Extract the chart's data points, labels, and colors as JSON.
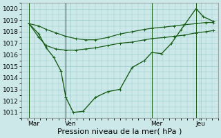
{
  "xlabel": "Pression niveau de la mer( hPa )",
  "bg_color": "#cce8e8",
  "grid_color": "#99cccc",
  "line_color": "#1a5e1a",
  "ylim": [
    1010.5,
    1020.5
  ],
  "yticks": [
    1011,
    1012,
    1013,
    1014,
    1015,
    1016,
    1017,
    1018,
    1019,
    1020
  ],
  "xlim": [
    0,
    8.0
  ],
  "day_positions": [
    0.5,
    2.0,
    5.5,
    7.3
  ],
  "day_labels": [
    "Mar",
    "Ven",
    "Mer",
    "Jeu"
  ],
  "vline_positions": [
    0.3,
    1.8,
    5.3,
    7.1
  ],
  "line_main_x": [
    0.3,
    0.7,
    1.0,
    1.3,
    1.6,
    1.8,
    2.1,
    2.5,
    3.0,
    3.5,
    4.0,
    4.5,
    5.0,
    5.3,
    5.7,
    6.1,
    6.5,
    7.1,
    7.4,
    7.8
  ],
  "line_main_y": [
    1018.7,
    1017.8,
    1016.6,
    1015.8,
    1014.6,
    1012.3,
    1011.0,
    1011.1,
    1012.3,
    1012.8,
    1013.0,
    1014.9,
    1015.5,
    1016.2,
    1016.1,
    1017.0,
    1018.2,
    1020.0,
    1019.3,
    1018.9
  ],
  "line_upper_x": [
    0.3,
    0.7,
    1.0,
    1.4,
    1.8,
    2.2,
    2.6,
    3.0,
    3.5,
    4.0,
    4.5,
    5.0,
    5.3,
    5.8,
    6.2,
    6.6,
    7.1,
    7.5,
    7.8
  ],
  "line_upper_y": [
    1018.7,
    1018.5,
    1018.2,
    1017.9,
    1017.6,
    1017.4,
    1017.3,
    1017.3,
    1017.5,
    1017.8,
    1018.0,
    1018.2,
    1018.3,
    1018.4,
    1018.5,
    1018.6,
    1018.7,
    1018.8,
    1018.8
  ],
  "line_lower_x": [
    0.3,
    0.7,
    1.0,
    1.4,
    1.8,
    2.2,
    2.6,
    3.0,
    3.5,
    4.0,
    4.5,
    5.0,
    5.3,
    5.8,
    6.2,
    6.6,
    7.1,
    7.5,
    7.8
  ],
  "line_lower_y": [
    1018.7,
    1017.5,
    1016.8,
    1016.5,
    1016.4,
    1016.4,
    1016.5,
    1016.6,
    1016.8,
    1017.0,
    1017.1,
    1017.3,
    1017.4,
    1017.5,
    1017.6,
    1017.7,
    1017.9,
    1018.0,
    1018.1
  ],
  "xlabel_fontsize": 8,
  "tick_fontsize": 6.5
}
